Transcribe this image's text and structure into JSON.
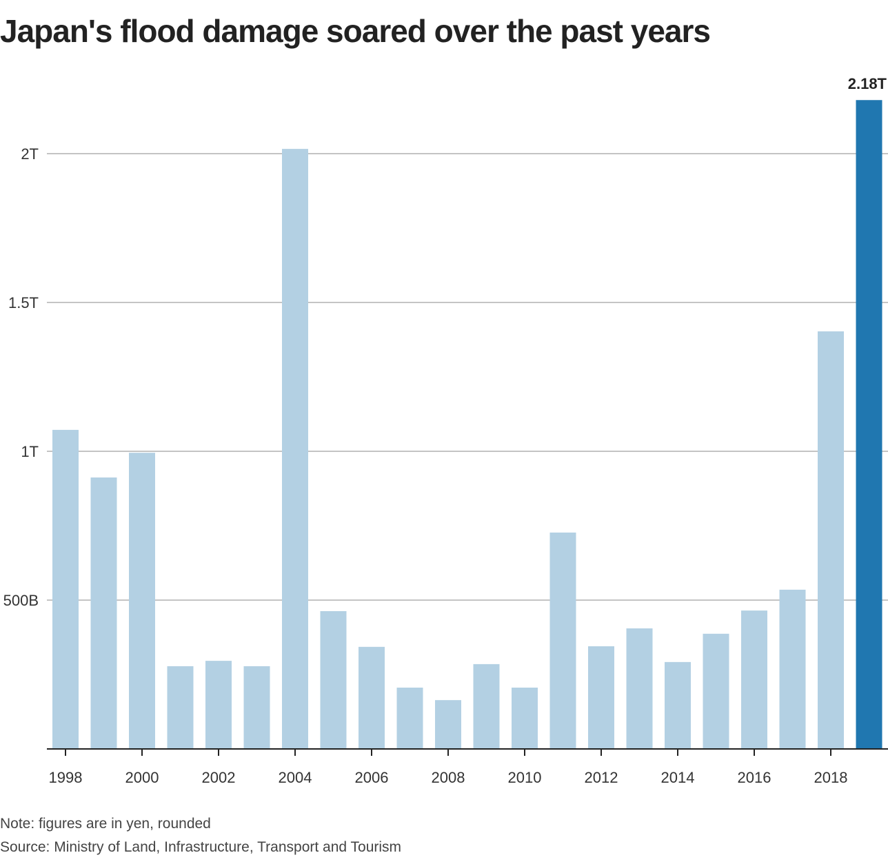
{
  "chart_data": {
    "type": "bar",
    "title": "Japan's flood damage soared over the past years",
    "xlabel": "",
    "ylabel": "",
    "ylim": [
      0,
      2200
    ],
    "unit": "billion yen",
    "categories": [
      "1998",
      "1999",
      "2000",
      "2001",
      "2002",
      "2003",
      "2004",
      "2005",
      "2006",
      "2007",
      "2008",
      "2009",
      "2010",
      "2011",
      "2012",
      "2013",
      "2014",
      "2015",
      "2016",
      "2017",
      "2018",
      "2019"
    ],
    "values": [
      1072,
      912,
      995,
      278,
      296,
      278,
      2016,
      463,
      343,
      206,
      164,
      285,
      206,
      727,
      345,
      405,
      292,
      387,
      465,
      535,
      1403,
      2180
    ],
    "highlight_index": 21,
    "colors": {
      "default": "#b3d0e3",
      "highlight": "#2077b0",
      "grid": "#c4c4c4",
      "axis": "#222222"
    },
    "y_ticks": [
      {
        "value": 500,
        "label": "500B"
      },
      {
        "value": 1000,
        "label": "1T"
      },
      {
        "value": 1500,
        "label": "1.5T"
      },
      {
        "value": 2000,
        "label": "2T"
      }
    ],
    "x_tick_labels": [
      "1998",
      "2000",
      "2002",
      "2004",
      "2006",
      "2008",
      "2010",
      "2012",
      "2014",
      "2016",
      "2018"
    ],
    "data_labels": [
      {
        "index": 21,
        "label": "2.18T"
      }
    ],
    "grid": true,
    "legend": "none"
  },
  "footer": {
    "note": "Note: figures are in yen, rounded",
    "source": "Source: Ministry of Land, Infrastructure, Transport and Tourism"
  }
}
